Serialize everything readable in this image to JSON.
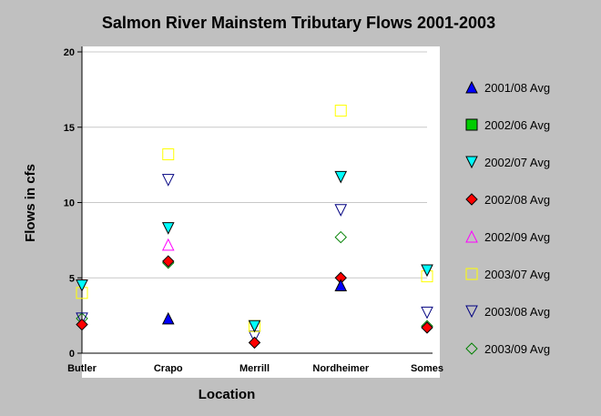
{
  "chart_data": {
    "type": "scatter",
    "title": "Salmon River Mainstem Tributary Flows 2001-2003",
    "xlabel": "Location",
    "ylabel": "Flows in cfs",
    "categories": [
      "Butler",
      "Crapo",
      "Merrill",
      "Nordheimer",
      "Somes"
    ],
    "ylim": [
      0,
      20
    ],
    "yticks": [
      0,
      5,
      10,
      15,
      20
    ],
    "grid": true,
    "legend_position": "right",
    "series": [
      {
        "name": "2001/08 Avg",
        "marker": "triangle-up",
        "fill": "#0000ff",
        "stroke": "#000000",
        "values": [
          null,
          2.3,
          null,
          4.5,
          null
        ]
      },
      {
        "name": "2002/06 Avg",
        "marker": "square",
        "fill": "#00cc00",
        "stroke": "#000000",
        "values": [
          null,
          null,
          null,
          null,
          null
        ]
      },
      {
        "name": "2002/07 Avg",
        "marker": "triangle-down",
        "fill": "#00ffff",
        "stroke": "#000000",
        "values": [
          4.5,
          8.3,
          1.8,
          11.7,
          5.5
        ]
      },
      {
        "name": "2002/08 Avg",
        "marker": "diamond",
        "fill": "#ff0000",
        "stroke": "#000000",
        "values": [
          1.9,
          6.1,
          0.7,
          5.0,
          1.7
        ]
      },
      {
        "name": "2002/09 Avg",
        "marker": "triangle-up",
        "fill": "none",
        "stroke": "#ff00ff",
        "values": [
          null,
          7.2,
          null,
          null,
          null
        ]
      },
      {
        "name": "2003/07 Avg",
        "marker": "square",
        "fill": "none",
        "stroke": "#ffff00",
        "values": [
          4.0,
          13.2,
          1.8,
          16.1,
          5.1
        ]
      },
      {
        "name": "2003/08 Avg",
        "marker": "triangle-down",
        "fill": "none",
        "stroke": "#000080",
        "values": [
          2.3,
          11.5,
          1.1,
          9.5,
          2.7
        ]
      },
      {
        "name": "2003/09 Avg",
        "marker": "diamond",
        "fill": "none",
        "stroke": "#008000",
        "values": [
          2.3,
          6.0,
          null,
          7.7,
          1.8
        ]
      }
    ]
  }
}
